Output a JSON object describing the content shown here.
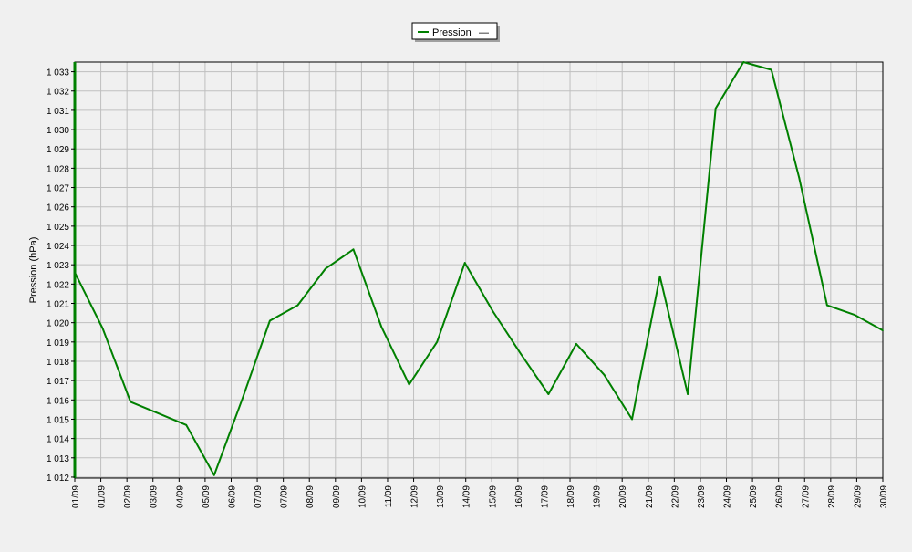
{
  "chart_data": {
    "type": "line",
    "legend": {
      "position": "top-center",
      "entries": [
        "Pression",
        "—"
      ]
    },
    "ylabel": "Pression (hPa)",
    "grid": true,
    "ylim": [
      1011.95,
      1033.5
    ],
    "y_ticks": [
      "1 012",
      "1 013",
      "1 014",
      "1 015",
      "1 016",
      "1 017",
      "1 018",
      "1 019",
      "1 020",
      "1 021",
      "1 022",
      "1 023",
      "1 024",
      "1 025",
      "1 026",
      "1 027",
      "1 028",
      "1 029",
      "1 030",
      "1 031",
      "1 032",
      "1 033"
    ],
    "x_ticks": [
      "01/09",
      "01/09",
      "02/09",
      "03/09",
      "04/09",
      "05/09",
      "06/09",
      "07/09",
      "07/09",
      "08/09",
      "09/09",
      "10/09",
      "11/09",
      "12/09",
      "13/09",
      "14/09",
      "15/09",
      "16/09",
      "17/09",
      "18/09",
      "19/09",
      "20/09",
      "21/09",
      "22/09",
      "23/09",
      "24/09",
      "25/09",
      "26/09",
      "27/09",
      "28/09",
      "29/09",
      "30/09"
    ],
    "colors": {
      "line": "#008000",
      "plot_bg": "#f0f0f0",
      "grid": "#bfbfbf",
      "frame": "#000000"
    },
    "series": [
      {
        "name": "Pression",
        "x": [
          "01/09",
          "02/09",
          "03/09",
          "04/09",
          "05/09",
          "06/09",
          "07/09",
          "08/09",
          "09/09",
          "10/09",
          "11/09",
          "12/09",
          "13/09",
          "14/09",
          "15/09",
          "16/09",
          "17/09",
          "18/09",
          "19/09",
          "20/09",
          "21/09",
          "22/09",
          "23/09",
          "24/09",
          "25/09",
          "26/09",
          "27/09",
          "28/09",
          "29/09",
          "30/09"
        ],
        "values": [
          1022.6,
          1019.7,
          1015.9,
          1015.3,
          1014.7,
          1012.1,
          1016.0,
          1020.1,
          1020.9,
          1022.8,
          1023.8,
          1019.8,
          1016.8,
          1019.0,
          1023.1,
          1020.6,
          1018.4,
          1016.3,
          1018.9,
          1017.3,
          1015.0,
          1022.4,
          1016.3,
          1031.1,
          1033.5,
          1033.1,
          1027.5,
          1020.9,
          1020.4,
          1019.6
        ]
      }
    ]
  }
}
